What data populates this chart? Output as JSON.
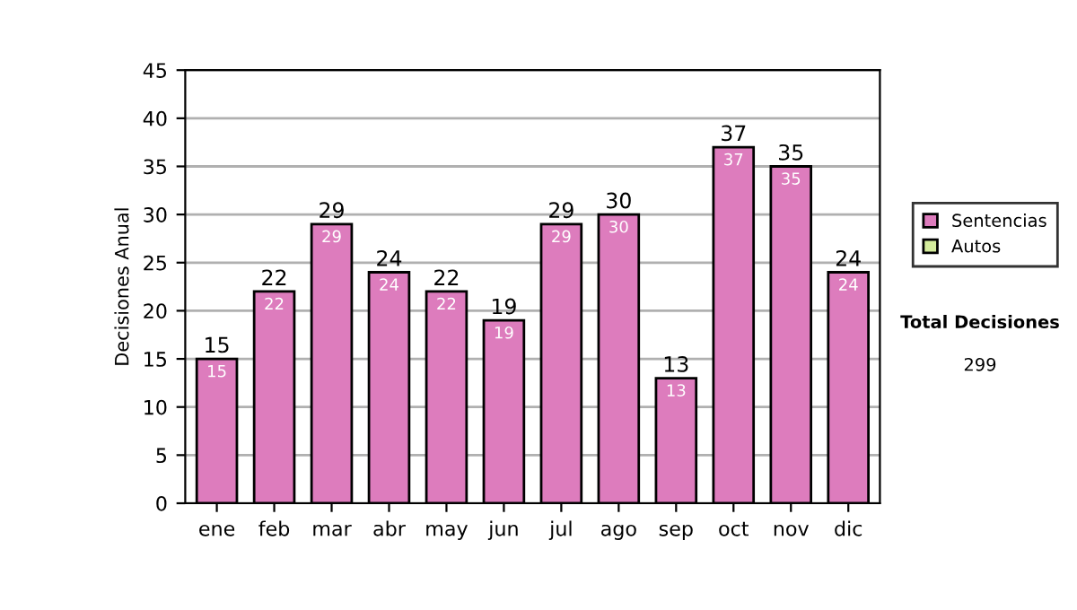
{
  "chart_data": {
    "type": "bar",
    "ylabel": "Decisiones Anual",
    "categories": [
      "ene",
      "feb",
      "mar",
      "abr",
      "may",
      "jun",
      "jul",
      "ago",
      "sep",
      "oct",
      "nov",
      "dic"
    ],
    "series": [
      {
        "name": "Sentencias",
        "color": "#dd7cbd",
        "values": [
          15,
          22,
          29,
          24,
          22,
          19,
          29,
          30,
          13,
          37,
          35,
          24
        ],
        "value_labels": [
          "15",
          "22",
          "29",
          "24",
          "22",
          "19",
          "29",
          "30",
          "13",
          "37",
          "35",
          "24"
        ]
      },
      {
        "name": "Autos",
        "color": "#d4ec9c",
        "values": [
          0,
          0,
          0,
          0,
          0,
          0,
          0,
          0,
          0,
          0,
          0,
          0
        ]
      }
    ],
    "stacked": true,
    "totals": [
      "15",
      "22",
      "29",
      "24",
      "22",
      "19",
      "29",
      "30",
      "13",
      "37",
      "35",
      "24"
    ],
    "ylim": [
      0,
      45
    ],
    "yticks": [
      0,
      5,
      10,
      15,
      20,
      25,
      30,
      35,
      40,
      45
    ],
    "grid": "y",
    "legend": "right",
    "annotations": [
      "Total Decisiones",
      "299"
    ]
  }
}
